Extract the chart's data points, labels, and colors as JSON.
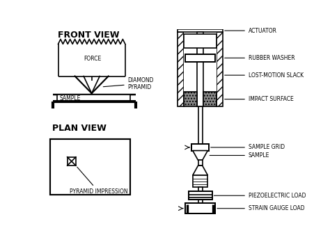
{
  "bg_color": "#ffffff",
  "line_color": "#000000",
  "labels": {
    "front_view": "FRONT VIEW",
    "plan_view": "PLAN VIEW",
    "force": "FORCE",
    "diamond_pyramid": "DIAMOND\nPYRAMID",
    "sample_left": "SAMPLE",
    "actuator": "ACTUATOR",
    "rubber_washer": "RUBBER WASHER",
    "lost_motion": "LOST-MOTION SLACK",
    "impact_surface": "IMPACT SURFACE",
    "sample_grid": "SAMPLE GRID",
    "sample_right": "SAMPLE",
    "piezoelectric": "PIEZOELECTRIC LOAD",
    "strain_gauge": "STRAIN GAUGE LOAD",
    "pyramid_impression": "PYRAMID IMPRESSION"
  }
}
